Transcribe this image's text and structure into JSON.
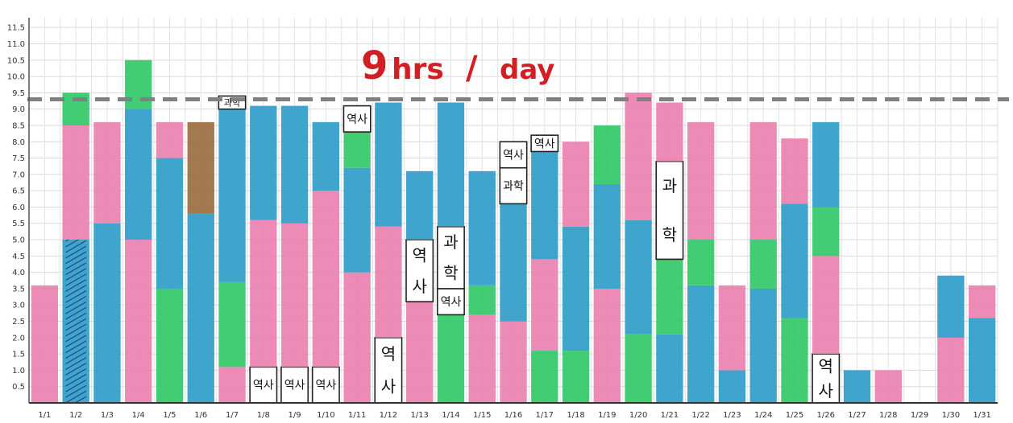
{
  "chart_data": {
    "type": "bar",
    "stacked": true,
    "title_number": "9",
    "title_unit": "hrs",
    "title_slash": "/",
    "title_rest": "day",
    "ylim": [
      0,
      11.8
    ],
    "y_ticks": [
      "0.5",
      "1.0",
      "1.5",
      "2.0",
      "2.5",
      "3.0",
      "3.5",
      "4.0",
      "4.5",
      "5.0",
      "5.5",
      "6.0",
      "6.5",
      "7.0",
      "7.5",
      "8.0",
      "8.5",
      "9.0",
      "9.5",
      "10.0",
      "10.5",
      "11.0",
      "11.5"
    ],
    "reference_line": 9.3,
    "grid": true,
    "colors": {
      "pink": "#ea7fae",
      "blue": "#2b9bc6",
      "green": "#2ec866",
      "brown": "#9a6a3c",
      "purple": "#7a55b8",
      "white": "#ffffff",
      "frame": "#222222",
      "reference": "#808080",
      "title": "#d11f24"
    },
    "categories": [
      "1/1",
      "1/2",
      "1/3",
      "1/4",
      "1/5",
      "1/6",
      "1/7",
      "1/8",
      "1/9",
      "1/10",
      "1/11",
      "1/12",
      "1/13",
      "1/14",
      "1/15",
      "1/16",
      "1/17",
      "1/18",
      "1/19",
      "1/20",
      "1/21",
      "1/22",
      "1/23",
      "1/24",
      "1/25",
      "1/26",
      "1/27",
      "1/28",
      "1/29",
      "1/30",
      "1/31"
    ],
    "series": [
      {
        "x": 0,
        "segments": [
          {
            "c": "pink",
            "v": 3.6
          }
        ]
      },
      {
        "x": 1,
        "segments": [
          {
            "c": "blue",
            "v": 5.0
          },
          {
            "c": "pink",
            "v": 3.5
          },
          {
            "c": "green",
            "v": 1.0
          }
        ],
        "hatch_to": 5.0
      },
      {
        "x": 2,
        "segments": [
          {
            "c": "blue",
            "v": 5.5
          },
          {
            "c": "pink",
            "v": 3.1
          }
        ]
      },
      {
        "x": 3,
        "segments": [
          {
            "c": "pink",
            "v": 5.0
          },
          {
            "c": "blue",
            "v": 4.0
          },
          {
            "c": "green",
            "v": 1.5
          }
        ]
      },
      {
        "x": 4,
        "segments": [
          {
            "c": "green",
            "v": 3.5
          },
          {
            "c": "blue",
            "v": 4.0
          },
          {
            "c": "pink",
            "v": 1.1
          }
        ]
      },
      {
        "x": 5,
        "segments": [
          {
            "c": "blue",
            "v": 5.8
          },
          {
            "c": "brown",
            "v": 2.8
          }
        ]
      },
      {
        "x": 6,
        "segments": [
          {
            "c": "pink",
            "v": 1.1
          },
          {
            "c": "green",
            "v": 2.6
          },
          {
            "c": "blue",
            "v": 5.3
          },
          {
            "c": "white",
            "v": 0.4,
            "text": "과학"
          }
        ]
      },
      {
        "x": 7,
        "segments": [
          {
            "c": "white",
            "v": 1.1,
            "text": "역사"
          },
          {
            "c": "pink",
            "v": 4.5
          },
          {
            "c": "blue",
            "v": 3.5
          }
        ]
      },
      {
        "x": 8,
        "segments": [
          {
            "c": "white",
            "v": 1.1,
            "text": "역사"
          },
          {
            "c": "pink",
            "v": 4.4
          },
          {
            "c": "blue",
            "v": 3.6
          }
        ]
      },
      {
        "x": 9,
        "segments": [
          {
            "c": "white",
            "v": 1.1,
            "text": "역사"
          },
          {
            "c": "pink",
            "v": 5.4
          },
          {
            "c": "blue",
            "v": 2.1
          }
        ]
      },
      {
        "x": 10,
        "segments": [
          {
            "c": "pink",
            "v": 4.0
          },
          {
            "c": "blue",
            "v": 3.2
          },
          {
            "c": "green",
            "v": 1.1
          },
          {
            "c": "white",
            "v": 0.8,
            "text": "역사"
          }
        ]
      },
      {
        "x": 11,
        "segments": [
          {
            "c": "white",
            "v": 2.0,
            "text": "역사",
            "vertical": true
          },
          {
            "c": "pink",
            "v": 3.4
          },
          {
            "c": "blue",
            "v": 3.8
          }
        ]
      },
      {
        "x": 12,
        "segments": [
          {
            "c": "pink",
            "v": 3.1
          },
          {
            "c": "white",
            "v": 1.9,
            "text": "역사",
            "vertical": true
          },
          {
            "c": "blue",
            "v": 2.1
          }
        ]
      },
      {
        "x": 13,
        "segments": [
          {
            "c": "green",
            "v": 2.7
          },
          {
            "c": "white",
            "v": 0.8,
            "text": "역사"
          },
          {
            "c": "white",
            "v": 1.9,
            "text": "과학",
            "vertical": true
          },
          {
            "c": "blue",
            "v": 3.8
          }
        ]
      },
      {
        "x": 14,
        "segments": [
          {
            "c": "pink",
            "v": 2.7
          },
          {
            "c": "green",
            "v": 0.9
          },
          {
            "c": "blue",
            "v": 3.5
          }
        ]
      },
      {
        "x": 15,
        "segments": [
          {
            "c": "pink",
            "v": 2.5
          },
          {
            "c": "blue",
            "v": 3.6
          },
          {
            "c": "white",
            "v": 1.1,
            "text": "과학"
          },
          {
            "c": "white",
            "v": 0.8,
            "text": "역사"
          }
        ]
      },
      {
        "x": 16,
        "segments": [
          {
            "c": "green",
            "v": 1.6
          },
          {
            "c": "pink",
            "v": 2.8
          },
          {
            "c": "blue",
            "v": 3.3
          },
          {
            "c": "white",
            "v": 0.5,
            "text": "역사"
          }
        ]
      },
      {
        "x": 17,
        "segments": [
          {
            "c": "green",
            "v": 1.6
          },
          {
            "c": "blue",
            "v": 3.8
          },
          {
            "c": "pink",
            "v": 2.6
          }
        ]
      },
      {
        "x": 18,
        "segments": [
          {
            "c": "pink",
            "v": 3.5
          },
          {
            "c": "blue",
            "v": 3.2
          },
          {
            "c": "green",
            "v": 1.8
          }
        ]
      },
      {
        "x": 19,
        "segments": [
          {
            "c": "green",
            "v": 2.1
          },
          {
            "c": "blue",
            "v": 3.5
          },
          {
            "c": "pink",
            "v": 3.9
          }
        ]
      },
      {
        "x": 20,
        "segments": [
          {
            "c": "blue",
            "v": 2.1
          },
          {
            "c": "green",
            "v": 2.3
          },
          {
            "c": "white",
            "v": 3.0,
            "text": "과학",
            "vertical": true
          },
          {
            "c": "pink",
            "v": 1.8
          }
        ]
      },
      {
        "x": 21,
        "segments": [
          {
            "c": "blue",
            "v": 3.6
          },
          {
            "c": "green",
            "v": 1.4
          },
          {
            "c": "pink",
            "v": 3.6
          }
        ]
      },
      {
        "x": 22,
        "segments": [
          {
            "c": "blue",
            "v": 1.0
          },
          {
            "c": "pink",
            "v": 2.6
          }
        ]
      },
      {
        "x": 23,
        "segments": [
          {
            "c": "blue",
            "v": 3.5
          },
          {
            "c": "green",
            "v": 1.5
          },
          {
            "c": "pink",
            "v": 3.6
          }
        ]
      },
      {
        "x": 24,
        "segments": [
          {
            "c": "green",
            "v": 2.6
          },
          {
            "c": "blue",
            "v": 3.5
          },
          {
            "c": "pink",
            "v": 2.0
          }
        ]
      },
      {
        "x": 25,
        "segments": [
          {
            "c": "white",
            "v": 1.5,
            "text": "역사",
            "vertical": true
          },
          {
            "c": "pink",
            "v": 3.0
          },
          {
            "c": "green",
            "v": 1.5
          },
          {
            "c": "blue",
            "v": 2.6
          }
        ]
      },
      {
        "x": 26,
        "segments": [
          {
            "c": "blue",
            "v": 1.0
          }
        ]
      },
      {
        "x": 27,
        "segments": [
          {
            "c": "pink",
            "v": 1.0
          }
        ]
      },
      {
        "x": 28,
        "segments": []
      },
      {
        "x": 29,
        "segments": [
          {
            "c": "pink",
            "v": 2.0
          },
          {
            "c": "blue",
            "v": 1.9
          }
        ]
      },
      {
        "x": 30,
        "segments": [
          {
            "c": "blue",
            "v": 2.6
          },
          {
            "c": "pink",
            "v": 1.0
          }
        ]
      }
    ]
  }
}
